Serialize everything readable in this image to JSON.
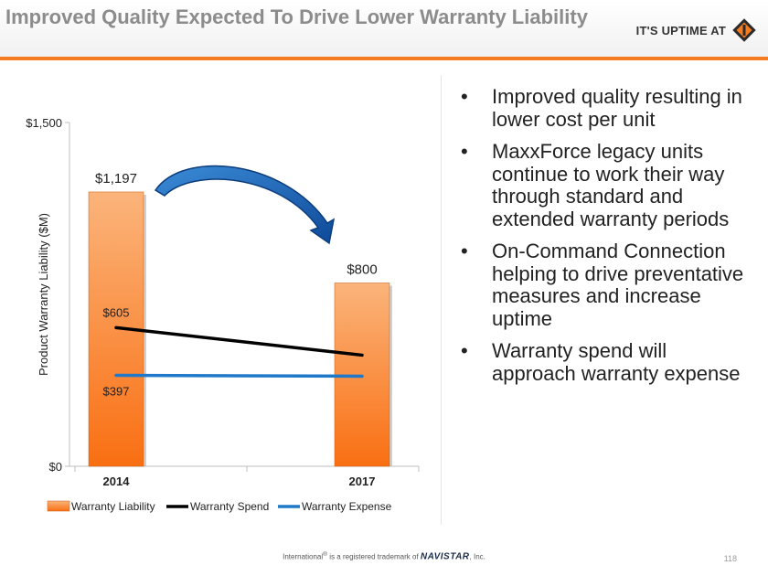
{
  "slide": {
    "title": "Improved Quality Expected To Drive Lower Warranty Liability",
    "brand_text": "IT'S UPTIME AT",
    "brand_logo_icon": "international-diamond-logo-icon",
    "accent_color": "#f47b20",
    "page_number": "118"
  },
  "bullets": [
    "Improved quality resulting in lower cost per unit",
    "MaxxForce legacy units continue to work their way through standard and extended warranty periods",
    "On-Command Connection helping to drive preventative measures and increase uptime",
    "Warranty spend will approach warranty expense"
  ],
  "bullet_symbol": "•",
  "footer": {
    "prefix": "International",
    "registered": "®",
    "middle": " is a registered trademark of ",
    "company": "NAVISTAR",
    "suffix": ", Inc."
  },
  "chart_data": {
    "type": "bar",
    "categories": [
      "2014",
      "2017"
    ],
    "ylabel": "Product Warranty Liability ($M)",
    "ylim": [
      0,
      1500
    ],
    "y_ticks": [
      0,
      1500
    ],
    "y_tick_labels": [
      "$0",
      "$1,500"
    ],
    "grid": false,
    "legend_position": "bottom",
    "series": [
      {
        "name": "Warranty Liability",
        "type": "bar",
        "values": [
          1197,
          800
        ],
        "value_labels": [
          "$1,197",
          "$800"
        ],
        "color": "#f98c3a"
      },
      {
        "name": "Warranty Spend",
        "type": "line",
        "values": [
          605,
          485
        ],
        "value_labels": [
          "$605",
          ""
        ],
        "color": "#000000"
      },
      {
        "name": "Warranty Expense",
        "type": "line",
        "values": [
          397,
          393
        ],
        "value_labels": [
          "$397",
          ""
        ],
        "color": "#1f78c8"
      }
    ],
    "annotation": "curved-arrow-icon"
  }
}
